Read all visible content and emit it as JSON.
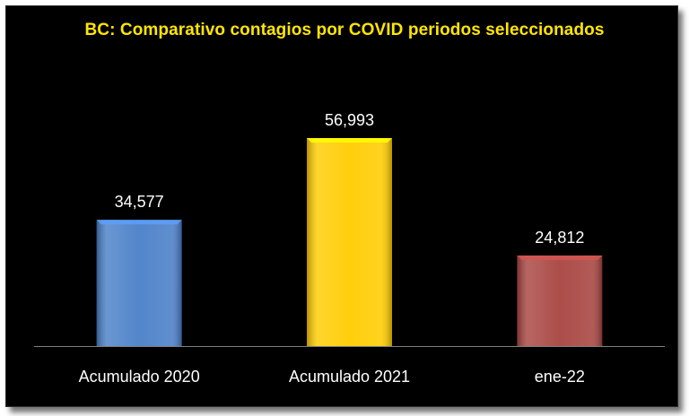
{
  "chart_data": {
    "type": "bar",
    "title": "BC: Comparativo contagios por COVID periodos seleccionados",
    "categories": [
      "Acumulado 2020",
      "Acumulado 2021",
      "ene-22"
    ],
    "values": [
      34577,
      56993,
      24812
    ],
    "value_labels": [
      "34,577",
      "56,993",
      "24,812"
    ],
    "colors": [
      "#4a7fc8",
      "#ffcc00",
      "#a84440"
    ],
    "ylim": [
      0,
      76000
    ],
    "grid": false,
    "legend": "none",
    "background": "#000000"
  }
}
